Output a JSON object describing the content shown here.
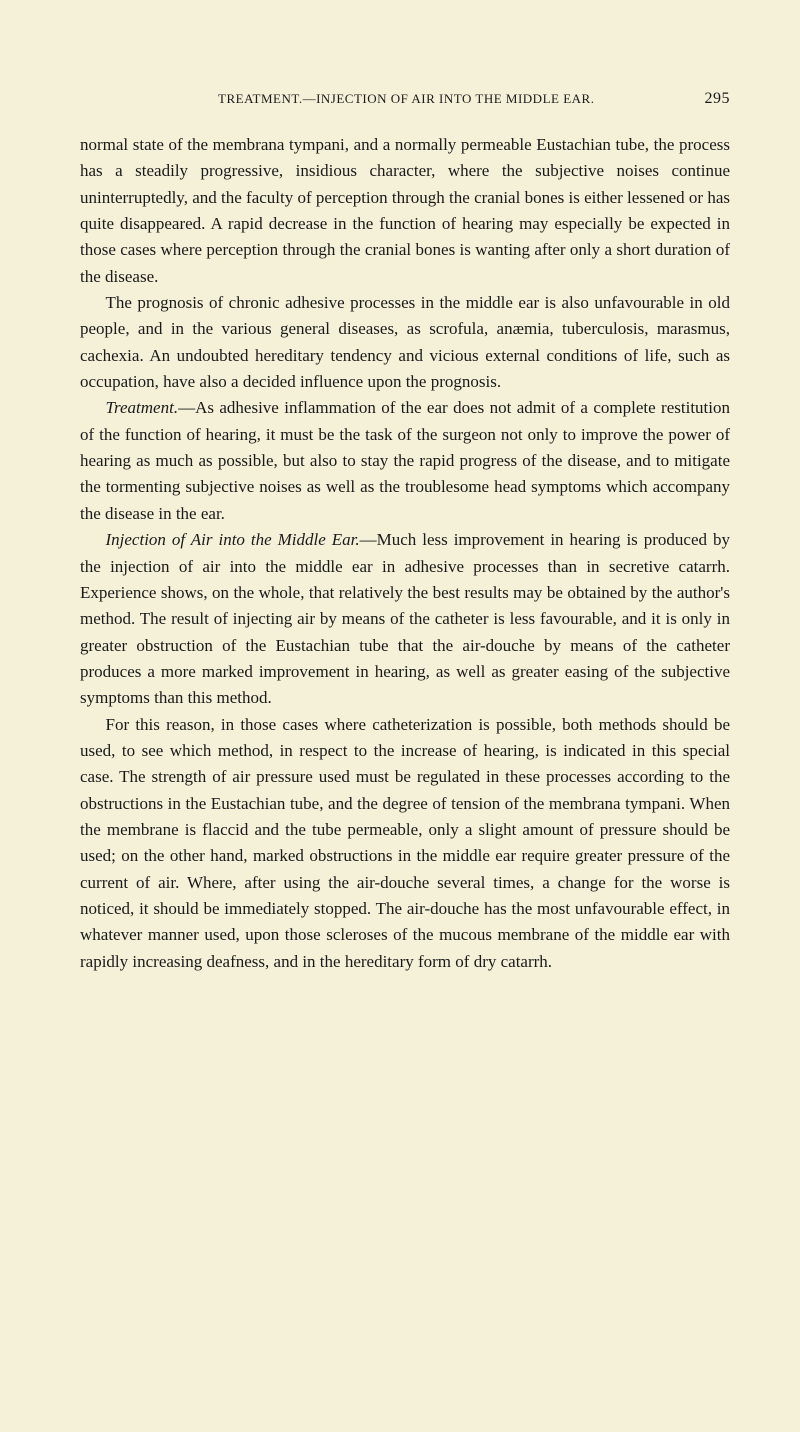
{
  "header": {
    "title": "TREATMENT.—INJECTION OF AIR INTO THE MIDDLE EAR.",
    "page_number": "295"
  },
  "paragraphs": {
    "p1": "normal state of the membrana tympani, and a normally permeable Eustachian tube, the process has a steadily progressive, insidious character, where the subjective noises continue uninterruptedly, and the faculty of perception through the cranial bones is either lessened or has quite disappeared. A rapid decrease in the function of hearing may especially be expected in those cases where perception through the cranial bones is wanting after only a short duration of the disease.",
    "p2": "The prognosis of chronic adhesive processes in the middle ear is also unfavourable in old people, and in the various general diseases, as scrofula, anæmia, tuberculosis, marasmus, cachexia. An undoubted hereditary tendency and vicious external conditions of life, such as occupation, have also a decided influence upon the prognosis.",
    "p3_lead": "Treatment.",
    "p3_body": "—As adhesive inflammation of the ear does not admit of a complete restitution of the function of hearing, it must be the task of the surgeon not only to improve the power of hearing as much as possible, but also to stay the rapid progress of the disease, and to mitigate the tormenting subjective noises as well as the troublesome head symptoms which accompany the disease in the ear.",
    "p4_lead": "Injection of Air into the Middle Ear.",
    "p4_body": "—Much less improvement in hearing is produced by the injection of air into the middle ear in adhesive processes than in secretive catarrh. Experience shows, on the whole, that relatively the best results may be obtained by the author's method. The result of injecting air by means of the catheter is less favourable, and it is only in greater obstruction of the Eustachian tube that the air-douche by means of the catheter produces a more marked improvement in hearing, as well as greater easing of the subjective symptoms than this method.",
    "p5": "For this reason, in those cases where catheterization is possible, both methods should be used, to see which method, in respect to the increase of hearing, is indicated in this special case. The strength of air pressure used must be regulated in these processes according to the obstructions in the Eustachian tube, and the degree of tension of the membrana tympani. When the membrane is flaccid and the tube permeable, only a slight amount of pressure should be used; on the other hand, marked obstructions in the middle ear require greater pressure of the current of air. Where, after using the air-douche several times, a change for the worse is noticed, it should be immediately stopped. The air-douche has the most unfavourable effect, in whatever manner used, upon those scleroses of the mucous membrane of the middle ear with rapidly increasing deafness, and in the hereditary form of dry catarrh."
  },
  "colors": {
    "background": "#f5f0d8",
    "text": "#1a1a1a"
  },
  "typography": {
    "body_fontsize": 17,
    "header_fontsize": 13,
    "pagenum_fontsize": 16,
    "line_height": 1.55,
    "font_family": "Georgia, 'Times New Roman', serif"
  }
}
